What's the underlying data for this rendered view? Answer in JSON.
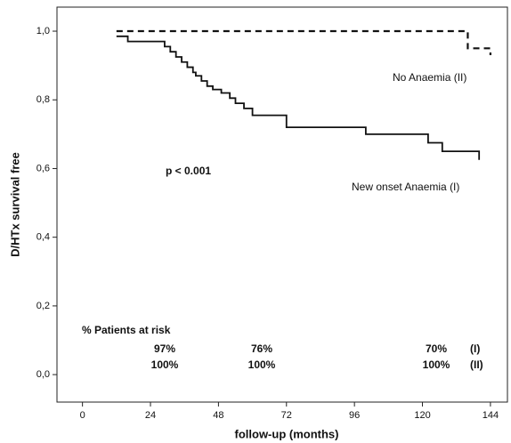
{
  "chart_data": {
    "type": "step",
    "xlabel": "follow-up (months)",
    "ylabel": "D/HTx survival free",
    "xlim": [
      -9,
      150
    ],
    "ylim": [
      -0.08,
      1.07
    ],
    "xticks": [
      0,
      24,
      48,
      72,
      96,
      120,
      144
    ],
    "yticks": [
      {
        "value": 0,
        "label": "0,0"
      },
      {
        "value": 0.2,
        "label": "0,2"
      },
      {
        "value": 0.4,
        "label": "0,4"
      },
      {
        "value": 0.6,
        "label": "0,6"
      },
      {
        "value": 0.8,
        "label": "0,8"
      },
      {
        "value": 1.0,
        "label": "1,0"
      }
    ],
    "series": [
      {
        "name": "New onset Anaemia (I)",
        "color": "#111111",
        "dash": false,
        "x": [
          12,
          16,
          29,
          31,
          33,
          35,
          37,
          39,
          40,
          42,
          44,
          46,
          49,
          52,
          54,
          57,
          60,
          72,
          100,
          122,
          127,
          140
        ],
        "values": [
          0.985,
          0.97,
          0.955,
          0.94,
          0.925,
          0.91,
          0.895,
          0.88,
          0.87,
          0.855,
          0.84,
          0.83,
          0.82,
          0.805,
          0.79,
          0.775,
          0.755,
          0.72,
          0.7,
          0.675,
          0.65,
          0.625
        ]
      },
      {
        "name": "No Anaemia (II)",
        "color": "#111111",
        "dash": true,
        "x": [
          12,
          136,
          144
        ],
        "values": [
          1.0,
          0.95,
          0.93
        ]
      }
    ],
    "annotation": "p < 0.001",
    "risk_table": {
      "title": "% Patients at risk",
      "rows": [
        [
          "97%",
          "76%",
          "70%",
          "(I)"
        ],
        [
          "100%",
          "100%",
          "100%",
          "(II)"
        ]
      ]
    }
  }
}
